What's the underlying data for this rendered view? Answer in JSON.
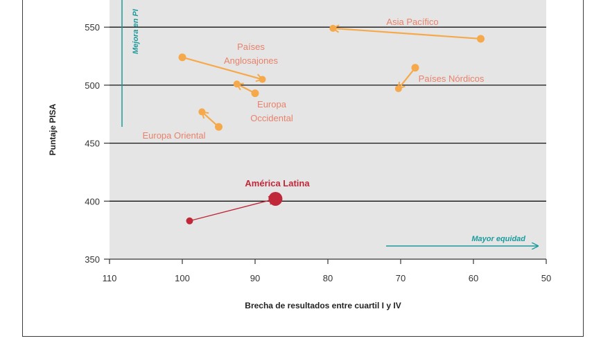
{
  "chart_data": {
    "type": "scatter",
    "xlabel": "Brecha de resultados entre cuartil I y IV",
    "ylabel": "Puntaje PISA",
    "xlim": [
      110,
      50
    ],
    "ylim": [
      350,
      580
    ],
    "x_reversed": true,
    "x_ticks": [
      "110",
      "100",
      "90",
      "80",
      "70",
      "60",
      "50"
    ],
    "y_ticks": [
      "350",
      "400",
      "450",
      "500",
      "550"
    ],
    "grid": "horizontal",
    "annotations": {
      "right_arrow": "Mayor equidad",
      "up_arrow": "Mejora en PI"
    },
    "series": [
      {
        "name": "Asia Pacífico",
        "color": "#f5a94a",
        "label_color": "#e8826a",
        "from": {
          "x": 59,
          "y": 540
        },
        "to": {
          "x": 79.3,
          "y": 549
        }
      },
      {
        "name": "Países Anglosajones",
        "color": "#f5a94a",
        "label_color": "#e8826a",
        "from": {
          "x": 100,
          "y": 524
        },
        "to": {
          "x": 89,
          "y": 505
        }
      },
      {
        "name": "Países Nórdicos",
        "color": "#f5a94a",
        "label_color": "#e8826a",
        "from": {
          "x": 68,
          "y": 515
        },
        "to": {
          "x": 70.3,
          "y": 497
        }
      },
      {
        "name": "Europa Occidental",
        "color": "#f5a94a",
        "label_color": "#e8826a",
        "from": {
          "x": 90,
          "y": 493
        },
        "to": {
          "x": 92.5,
          "y": 501
        }
      },
      {
        "name": "Europa Oriental",
        "color": "#f5a94a",
        "label_color": "#e8826a",
        "from": {
          "x": 95,
          "y": 464
        },
        "to": {
          "x": 97.3,
          "y": 477
        }
      },
      {
        "name": "América Latina",
        "color": "#c0283a",
        "label_color": "#c0283a",
        "from": {
          "x": 99,
          "y": 383
        },
        "to": {
          "x": 87.2,
          "y": 402
        }
      }
    ],
    "region_labels": {
      "asia": "Asia Pacífico",
      "anglo_1": "Países",
      "anglo_2": "Anglosajones",
      "nordic": "Países Nórdicos",
      "europe_w_1": "Europa",
      "europe_w_2": "Occidental",
      "europe_e": "Europa Oriental",
      "latam": "América Latina"
    },
    "colors": {
      "plot_bg": "#e5e5e5",
      "grid": "#111111",
      "teal": "#1a9a9c",
      "orange": "#f5a94a",
      "salmon": "#e8826a",
      "red": "#c0283a"
    }
  }
}
